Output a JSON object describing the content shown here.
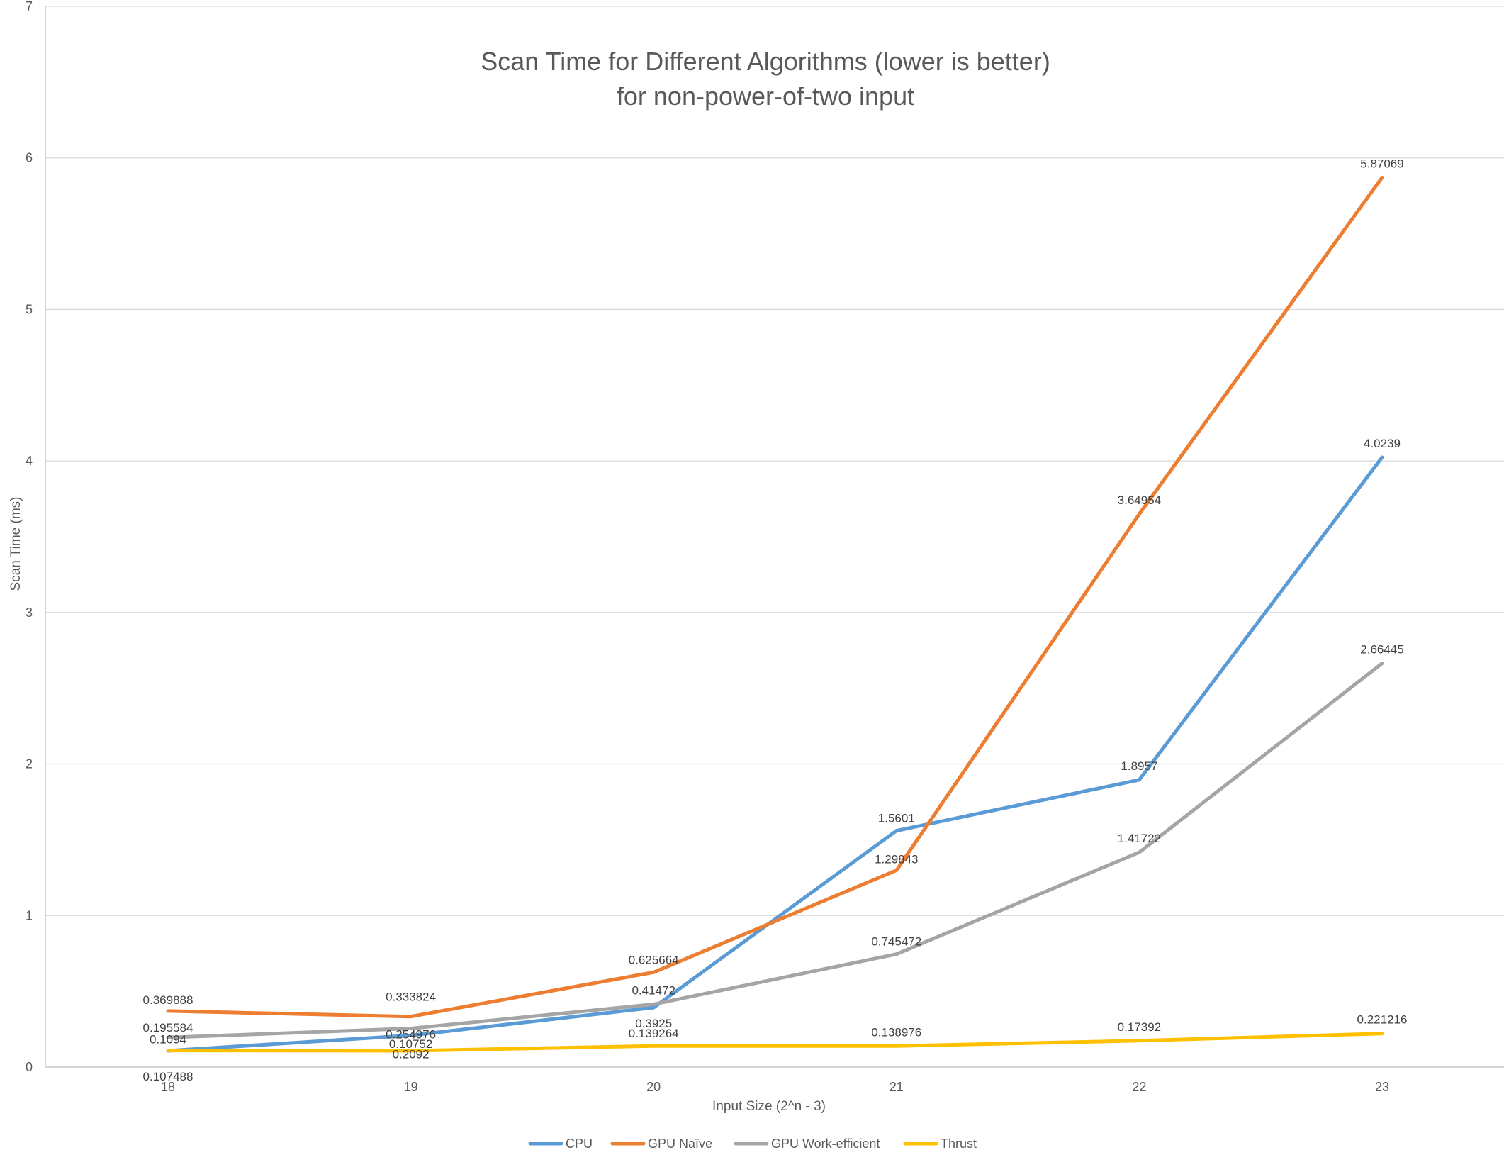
{
  "chart_data": {
    "type": "line",
    "title": "Scan Time for Different Algorithms (lower is better)",
    "subtitle": "for non-power-of-two input",
    "xlabel": "Input Size (2^n - 3)",
    "ylabel": "Scan Time (ms)",
    "categories": [
      "18",
      "19",
      "20",
      "21",
      "22",
      "23"
    ],
    "ylim": [
      0,
      7
    ],
    "yticks": [
      "0",
      "1",
      "2",
      "3",
      "4",
      "5",
      "6",
      "7"
    ],
    "grid": true,
    "legend_position": "bottom",
    "series": [
      {
        "name": "CPU",
        "color": "#5b9bd5",
        "values": [
          0.107488,
          0.2092,
          0.3925,
          1.5601,
          1.8957,
          4.0239
        ],
        "labels": [
          "0.107488",
          "0.2092",
          "0.3925",
          "1.5601",
          "1.8957",
          "4.0239"
        ]
      },
      {
        "name": "GPU Naïve",
        "color": "#ed7d31",
        "values": [
          0.369888,
          0.333824,
          0.625664,
          1.29843,
          3.64954,
          5.87069
        ],
        "labels": [
          "0.369888",
          "0.333824",
          "0.625664",
          "1.29843",
          "3.64954",
          "5.87069"
        ]
      },
      {
        "name": "GPU Work-efficient",
        "color": "#a5a5a5",
        "values": [
          0.195584,
          0.254976,
          0.41472,
          0.745472,
          1.41722,
          2.66445
        ],
        "labels": [
          "0.195584",
          "0.254976",
          "0.41472",
          "0.745472",
          "1.41722",
          "2.66445"
        ]
      },
      {
        "name": "Thrust",
        "color": "#ffc000",
        "values": [
          0.1094,
          0.10752,
          0.139264,
          0.138976,
          0.17392,
          0.221216
        ],
        "labels": [
          "0.1094",
          "0.10752",
          "0.139264",
          "0.138976",
          "0.17392",
          "0.221216"
        ]
      }
    ]
  }
}
